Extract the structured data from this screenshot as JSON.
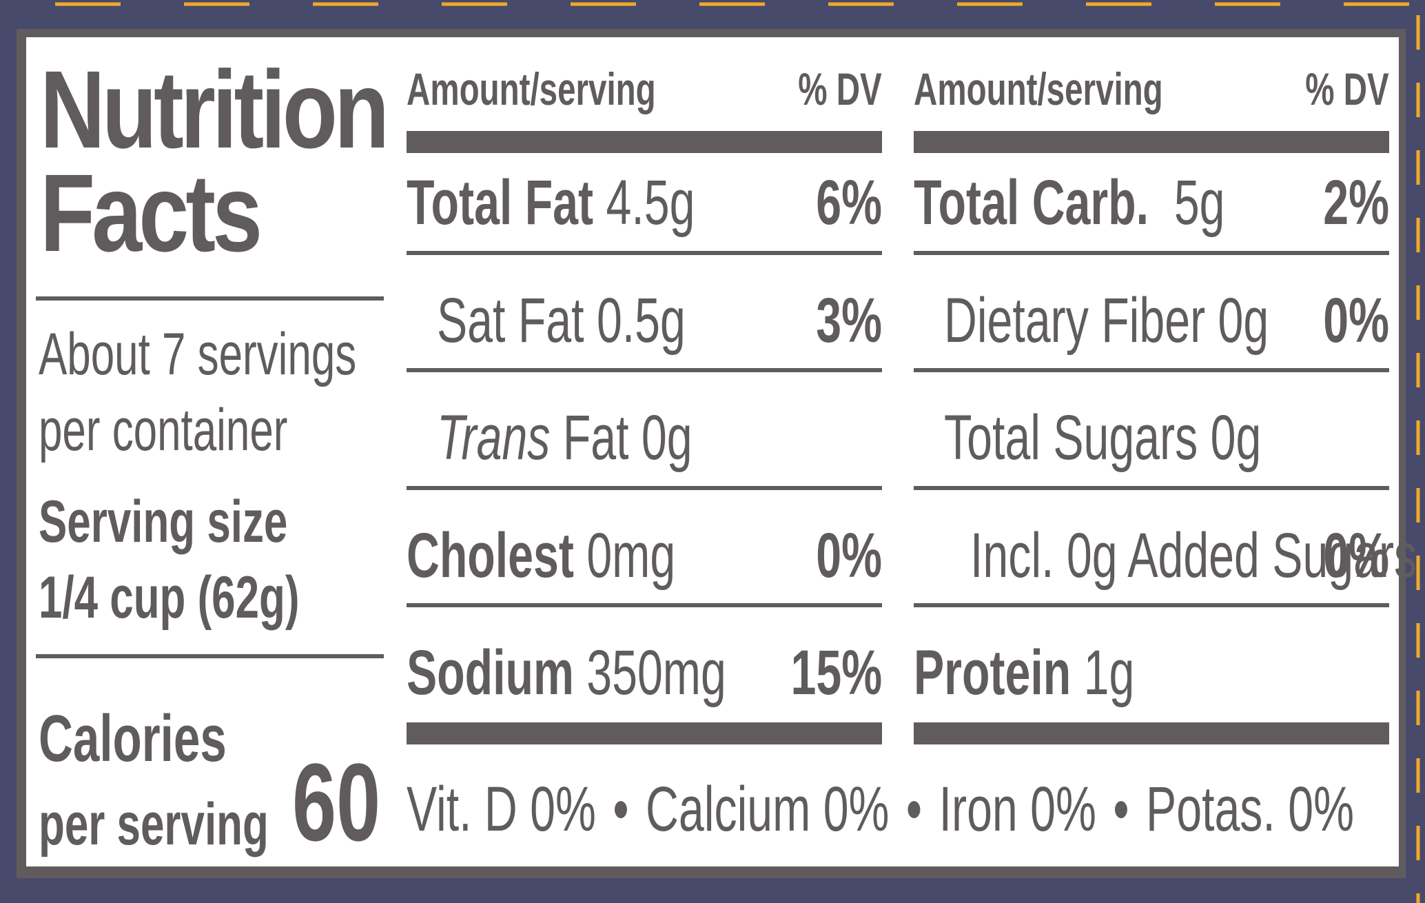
{
  "colors": {
    "border": "#474a6b",
    "dash": "#f0aa2a",
    "ink": "#605c5e",
    "panel": "#ffffff"
  },
  "title": {
    "line1": "Nutrition",
    "line2": "Facts"
  },
  "servings": {
    "line1": "About 7 servings",
    "line2": "per container"
  },
  "serving_size": {
    "label": "Serving size",
    "value": "1/4 cup (62g)"
  },
  "calories": {
    "label": "Calories",
    "sublabel": "per serving",
    "value": "60"
  },
  "headers": {
    "amount": "Amount/serving",
    "dv": "% DV"
  },
  "left_rows": [
    {
      "label": "Total Fat",
      "amount": "4.5g",
      "dv": "6%"
    },
    {
      "label": "Sat Fat",
      "amount": "0.5g",
      "dv": "3%"
    },
    {
      "label": "Trans",
      "amount": "Fat 0g",
      "dv": ""
    },
    {
      "label": "Cholest",
      "amount": "0mg",
      "dv": "0%"
    },
    {
      "label": "Sodium",
      "amount": "350mg",
      "dv": "15%"
    }
  ],
  "right_rows": [
    {
      "label": "Total Carb.",
      "amount": "5g",
      "dv": "2%"
    },
    {
      "label": "Dietary Fiber",
      "amount": "0g",
      "dv": "0%"
    },
    {
      "label": "Total Sugars",
      "amount": "0g",
      "dv": ""
    },
    {
      "label": "Incl. 0g Added Sugars",
      "amount": "",
      "dv": "0%"
    },
    {
      "label": "Protein",
      "amount": "1g",
      "dv": ""
    }
  ],
  "vitamins": [
    {
      "label": "Vit. D",
      "value": "0%"
    },
    {
      "label": "Calcium",
      "value": "0%"
    },
    {
      "label": "Iron",
      "value": "0%"
    },
    {
      "label": "Potas.",
      "value": "0%"
    }
  ],
  "separator": "•"
}
